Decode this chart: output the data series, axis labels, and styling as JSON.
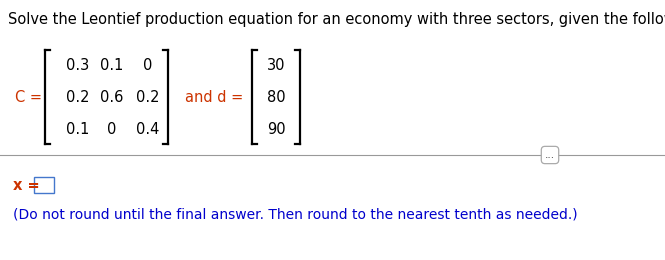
{
  "title": "Solve the Leontief production equation for an economy with three sectors, given the following.",
  "title_color": "#000000",
  "title_fontsize": 10.5,
  "C_label": "C =",
  "d_label": "and d =",
  "matrix_C": [
    [
      "0.3",
      "0.1",
      "0"
    ],
    [
      "0.2",
      "0.6",
      "0.2"
    ],
    [
      "0.1",
      "0",
      "0.4"
    ]
  ],
  "vector_d": [
    "30",
    "80",
    "90"
  ],
  "note": "(Do not round until the final answer. Then round to the nearest tenth as needed.)",
  "note_color": "#0000CC",
  "label_color": "#CC3300",
  "divider_color": "#999999",
  "dots_text": "...",
  "background_color": "#FFFFFF",
  "matrix_fontsize": 10.5,
  "label_fontsize": 10.5,
  "note_fontsize": 10.0
}
